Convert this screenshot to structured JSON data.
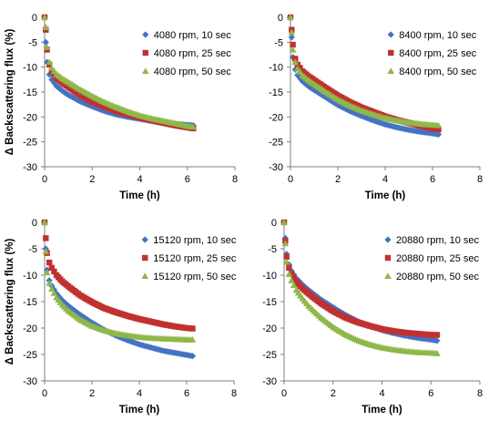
{
  "shared": {
    "xlabel": "Time (h)",
    "ylabel": "Δ Backscattering flux (%)"
  },
  "chart_data": [
    {
      "type": "scatter",
      "panel": "top-left",
      "xlabel": "Time (h)",
      "ylabel": "Δ Backscattering flux (%)",
      "xlim": [
        0,
        8
      ],
      "ylim": [
        -30,
        0
      ],
      "xticks": [
        "0",
        "2",
        "4",
        "6",
        "8"
      ],
      "yticks": [
        "0",
        "-5",
        "-10",
        "-15",
        "-20",
        "-25",
        "-30"
      ],
      "legend_position": "top-right",
      "grid": false,
      "series": [
        {
          "name": "4080 rpm, 10 sec",
          "color": "#4472C4",
          "marker": "diamond",
          "x": [
            0,
            0.05,
            0.1,
            0.2,
            0.3,
            0.5,
            0.75,
            1,
            1.5,
            2,
            2.5,
            3,
            3.5,
            4,
            4.5,
            5,
            5.5,
            6,
            6.25
          ],
          "y": [
            0,
            -5,
            -9,
            -11.5,
            -12.5,
            -13.8,
            -14.8,
            -15.6,
            -16.9,
            -17.9,
            -18.8,
            -19.5,
            -20,
            -20.4,
            -20.8,
            -21.1,
            -21.4,
            -21.6,
            -21.7
          ]
        },
        {
          "name": "4080 rpm, 25 sec",
          "color": "#C0312F",
          "marker": "square",
          "x": [
            0,
            0.05,
            0.1,
            0.2,
            0.3,
            0.5,
            0.75,
            1,
            1.5,
            2,
            2.5,
            3,
            3.5,
            4,
            4.5,
            5,
            5.5,
            6,
            6.25
          ],
          "y": [
            0,
            -2.5,
            -6.5,
            -9.5,
            -10.8,
            -12.2,
            -13.2,
            -14,
            -15.6,
            -16.9,
            -17.9,
            -18.8,
            -19.5,
            -20.1,
            -20.7,
            -21.2,
            -21.7,
            -22.1,
            -22.3
          ]
        },
        {
          "name": "4080 rpm, 50 sec",
          "color": "#8FB74A",
          "marker": "triangle",
          "x": [
            0,
            0.05,
            0.1,
            0.2,
            0.3,
            0.5,
            0.75,
            1,
            1.5,
            2,
            2.5,
            3,
            3.5,
            4,
            4.5,
            5,
            5.5,
            6,
            6.25
          ],
          "y": [
            0,
            -2,
            -6,
            -9,
            -10.2,
            -11.4,
            -12.3,
            -13,
            -14.5,
            -15.8,
            -17,
            -18,
            -18.9,
            -19.7,
            -20.3,
            -20.8,
            -21.3,
            -21.8,
            -22
          ]
        }
      ]
    },
    {
      "type": "scatter",
      "panel": "top-right",
      "xlabel": "Time (h)",
      "ylabel": "",
      "xlim": [
        0,
        8
      ],
      "ylim": [
        -30,
        0
      ],
      "xticks": [
        "0",
        "2",
        "4",
        "6",
        "8"
      ],
      "yticks": [
        "0",
        "-5",
        "-10",
        "-15",
        "-20",
        "-25",
        "-30"
      ],
      "legend_position": "top-right",
      "grid": false,
      "series": [
        {
          "name": "8400 rpm, 10 sec",
          "color": "#4472C4",
          "marker": "diamond",
          "x": [
            0,
            0.05,
            0.1,
            0.2,
            0.3,
            0.5,
            0.75,
            1,
            1.5,
            2,
            2.5,
            3,
            3.5,
            4,
            4.5,
            5,
            5.5,
            6,
            6.25
          ],
          "y": [
            0,
            -4,
            -8,
            -10.5,
            -11.6,
            -12.8,
            -13.8,
            -14.6,
            -16.1,
            -17.6,
            -18.8,
            -19.8,
            -20.7,
            -21.5,
            -22.1,
            -22.6,
            -23,
            -23.3,
            -23.5
          ]
        },
        {
          "name": "8400 rpm, 25 sec",
          "color": "#C0312F",
          "marker": "square",
          "x": [
            0,
            0.05,
            0.1,
            0.2,
            0.3,
            0.5,
            0.75,
            1,
            1.5,
            2,
            2.5,
            3,
            3.5,
            4,
            4.5,
            5,
            5.5,
            6,
            6.25
          ],
          "y": [
            0,
            -2.5,
            -5.5,
            -8.3,
            -9.5,
            -10.8,
            -11.8,
            -12.6,
            -14.2,
            -15.7,
            -17,
            -18.1,
            -19,
            -19.9,
            -20.6,
            -21.2,
            -21.8,
            -22.3,
            -22.5
          ]
        },
        {
          "name": "8400 rpm, 50 sec",
          "color": "#8FB74A",
          "marker": "triangle",
          "x": [
            0,
            0.05,
            0.1,
            0.2,
            0.3,
            0.5,
            0.75,
            1,
            1.5,
            2,
            2.5,
            3,
            3.5,
            4,
            4.5,
            5,
            5.5,
            6,
            6.25
          ],
          "y": [
            0,
            -3,
            -6.5,
            -9,
            -10.3,
            -11.6,
            -12.6,
            -13.4,
            -15,
            -16.5,
            -17.7,
            -18.7,
            -19.5,
            -20.2,
            -20.7,
            -21.1,
            -21.4,
            -21.6,
            -21.7
          ]
        }
      ]
    },
    {
      "type": "scatter",
      "panel": "bottom-left",
      "xlabel": "Time (h)",
      "ylabel": "Δ Backscattering flux (%)",
      "xlim": [
        0,
        8
      ],
      "ylim": [
        -30,
        0
      ],
      "xticks": [
        "0",
        "2",
        "4",
        "6",
        "8"
      ],
      "yticks": [
        "0",
        "-5",
        "-10",
        "-15",
        "-20",
        "-25",
        "-30"
      ],
      "legend_position": "top-right",
      "grid": false,
      "series": [
        {
          "name": "15120 rpm, 10 sec",
          "color": "#4472C4",
          "marker": "diamond",
          "x": [
            0,
            0.05,
            0.1,
            0.2,
            0.3,
            0.5,
            0.75,
            1,
            1.5,
            2,
            2.5,
            3,
            3.5,
            4,
            4.5,
            5,
            5.5,
            6,
            6.25
          ],
          "y": [
            0,
            -5,
            -9,
            -11,
            -12,
            -13.5,
            -14.8,
            -15.8,
            -17.5,
            -19,
            -20.3,
            -21.4,
            -22.3,
            -23.1,
            -23.7,
            -24.3,
            -24.7,
            -25.1,
            -25.3
          ]
        },
        {
          "name": "15120 rpm, 25 sec",
          "color": "#C0312F",
          "marker": "square",
          "x": [
            0,
            0.05,
            0.1,
            0.2,
            0.3,
            0.5,
            0.75,
            1,
            1.5,
            2,
            2.5,
            3,
            3.5,
            4,
            4.5,
            5,
            5.5,
            6,
            6.25
          ],
          "y": [
            0,
            -3,
            -5.8,
            -7.6,
            -8.6,
            -10,
            -11.2,
            -12.1,
            -13.8,
            -15.1,
            -16.2,
            -17,
            -17.7,
            -18.3,
            -18.8,
            -19.3,
            -19.7,
            -20,
            -20.1
          ]
        },
        {
          "name": "15120 rpm, 50 sec",
          "color": "#8FB74A",
          "marker": "triangle",
          "x": [
            0,
            0.05,
            0.1,
            0.2,
            0.3,
            0.5,
            0.75,
            1,
            1.5,
            2,
            2.5,
            3,
            3.5,
            4,
            4.5,
            5,
            5.5,
            6,
            6.25
          ],
          "y": [
            0,
            -5.5,
            -9.5,
            -11.5,
            -12.6,
            -14.2,
            -15.6,
            -16.7,
            -18.4,
            -19.6,
            -20.4,
            -21,
            -21.4,
            -21.7,
            -21.9,
            -22,
            -22.1,
            -22.2,
            -22.2
          ]
        }
      ]
    },
    {
      "type": "scatter",
      "panel": "bottom-right",
      "xlabel": "Time (h)",
      "ylabel": "",
      "xlim": [
        0,
        8
      ],
      "ylim": [
        -30,
        0
      ],
      "xticks": [
        "0",
        "2",
        "4",
        "6",
        "8"
      ],
      "yticks": [
        "0",
        "-5",
        "-10",
        "-15",
        "-20",
        "-25",
        "-30"
      ],
      "legend_position": "top-right",
      "grid": false,
      "series": [
        {
          "name": "20880 rpm, 10 sec",
          "color": "#4472C4",
          "marker": "diamond",
          "x": [
            0,
            0.05,
            0.1,
            0.2,
            0.3,
            0.5,
            0.75,
            1,
            1.5,
            2,
            2.5,
            3,
            3.5,
            4,
            4.5,
            5,
            5.5,
            6,
            6.25
          ],
          "y": [
            0,
            -3,
            -6,
            -8,
            -9.2,
            -10.6,
            -11.8,
            -12.8,
            -14.6,
            -16.1,
            -17.5,
            -18.7,
            -19.6,
            -20.4,
            -21,
            -21.5,
            -21.9,
            -22.2,
            -22.4
          ]
        },
        {
          "name": "20880 rpm, 25 sec",
          "color": "#C0312F",
          "marker": "square",
          "x": [
            0,
            0.05,
            0.1,
            0.2,
            0.3,
            0.5,
            0.75,
            1,
            1.5,
            2,
            2.5,
            3,
            3.5,
            4,
            4.5,
            5,
            5.5,
            6,
            6.25
          ],
          "y": [
            0,
            -3.5,
            -6.5,
            -8.6,
            -9.8,
            -11.3,
            -12.5,
            -13.5,
            -15.3,
            -16.8,
            -18,
            -18.9,
            -19.6,
            -20.2,
            -20.6,
            -20.9,
            -21.1,
            -21.3,
            -21.3
          ]
        },
        {
          "name": "20880 rpm, 50 sec",
          "color": "#8FB74A",
          "marker": "triangle",
          "x": [
            0,
            0.05,
            0.1,
            0.2,
            0.3,
            0.5,
            0.75,
            1,
            1.5,
            2,
            2.5,
            3,
            3.5,
            4,
            4.5,
            5,
            5.5,
            6,
            6.25
          ],
          "y": [
            0,
            -4,
            -7.5,
            -9.8,
            -11,
            -12.8,
            -14.4,
            -15.8,
            -18,
            -19.8,
            -21.2,
            -22.3,
            -23.1,
            -23.7,
            -24.1,
            -24.4,
            -24.6,
            -24.7,
            -24.8
          ]
        }
      ]
    }
  ]
}
